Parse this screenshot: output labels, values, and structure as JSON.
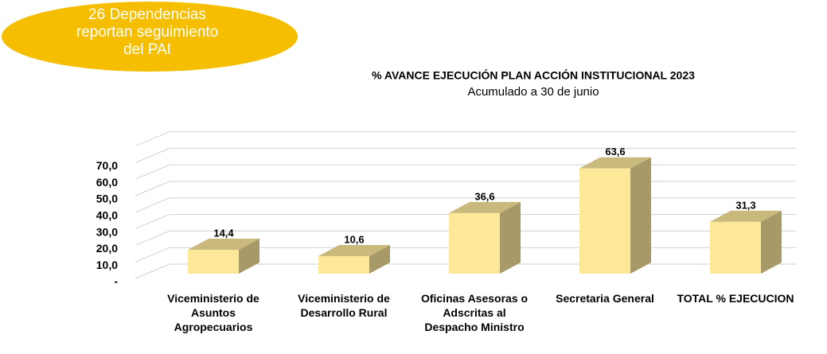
{
  "chart_data": {
    "type": "bar3d",
    "title": "% AVANCE EJECUCIÓN PLAN ACCIÓN INSTITUCIONAL 2023",
    "subtitle": "Acumulado a 30 de junio",
    "annotation": [
      "26 Dependencias",
      "reportan seguimiento",
      "del PAI"
    ],
    "categories": [
      "Viceministerio de Asuntos Agropecuarios",
      "Viceministerio de Desarrollo Rural",
      "Oficinas Asesoras o Adscritas al Despacho Ministro",
      "Secretaria General",
      "TOTAL % EJECUCION"
    ],
    "values": [
      14.4,
      10.6,
      36.6,
      63.6,
      31.3
    ],
    "value_labels": [
      "14,4",
      "10,6",
      "36,6",
      "63,6",
      "31,3"
    ],
    "color": "#fde89a",
    "ylim": [
      0,
      80
    ],
    "yticks": [
      {
        "value": 0,
        "label": "-"
      },
      {
        "value": 10,
        "label": "10,0"
      },
      {
        "value": 20,
        "label": "20,0"
      },
      {
        "value": 30,
        "label": "30,0"
      },
      {
        "value": 40,
        "label": "40,0"
      },
      {
        "value": 50,
        "label": "50,0"
      },
      {
        "value": 60,
        "label": "60,0"
      },
      {
        "value": 70,
        "label": "70,0"
      }
    ],
    "grid": true
  }
}
